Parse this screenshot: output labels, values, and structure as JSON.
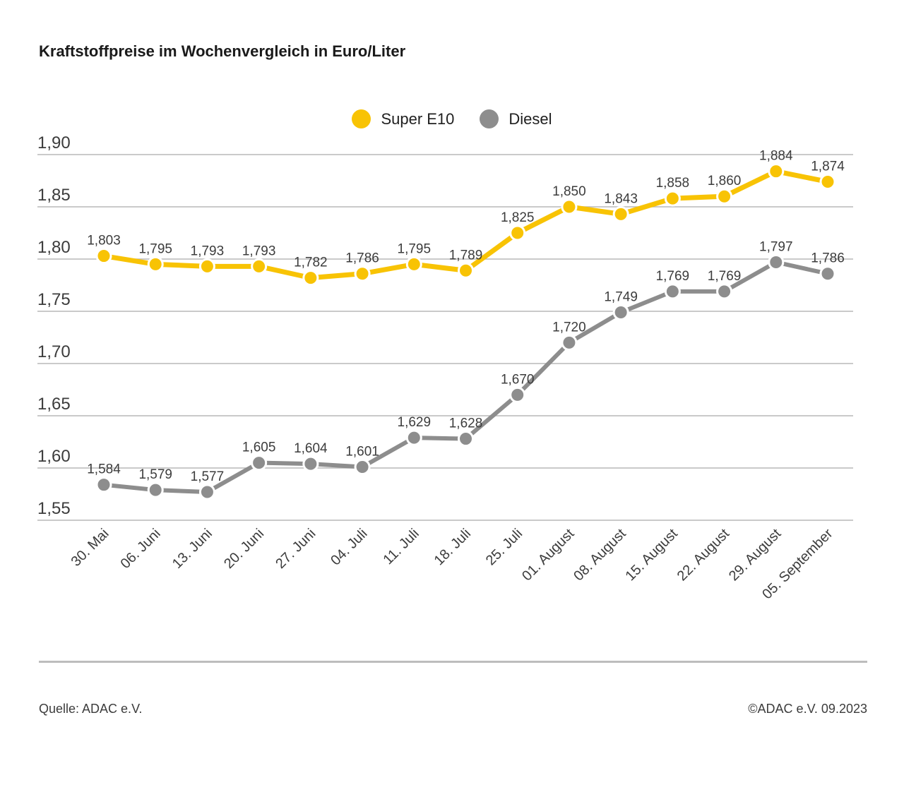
{
  "title": "Kraftstoffpreise im Wochenvergleich in Euro/Liter",
  "chart_data": {
    "type": "line",
    "title": "Kraftstoffpreise im Wochenvergleich in Euro/Liter",
    "xlabel": "",
    "ylabel": "",
    "ylim": [
      1.55,
      1.9
    ],
    "ytick_step": 0.05,
    "grid": true,
    "legend_position": "top-center",
    "decimal_separator": ",",
    "categories": [
      "30. Mai",
      "06. Juni",
      "13. Juni",
      "20. Juni",
      "27. Juni",
      "04. Juli",
      "11. Juli",
      "18. Juli",
      "25. Juli",
      "01. August",
      "08. August",
      "15. August",
      "22. August",
      "29. August",
      "05. September"
    ],
    "series": [
      {
        "name": "Super E10",
        "color": "#F8C304",
        "values": [
          1.803,
          1.795,
          1.793,
          1.793,
          1.782,
          1.786,
          1.795,
          1.789,
          1.825,
          1.85,
          1.843,
          1.858,
          1.86,
          1.884,
          1.874
        ]
      },
      {
        "name": "Diesel",
        "color": "#8D8D8D",
        "values": [
          1.584,
          1.579,
          1.577,
          1.605,
          1.604,
          1.601,
          1.629,
          1.628,
          1.67,
          1.72,
          1.749,
          1.769,
          1.769,
          1.797,
          1.786
        ]
      }
    ]
  },
  "colors": {
    "grid": "#b8b8b8",
    "axis_text": "#3c3c3c",
    "value_label": "#3c3c3c",
    "title_text": "#1a1a1a",
    "divider": "#bdbdbd"
  },
  "footer": {
    "source": "Quelle: ADAC e.V.",
    "copyright": "©ADAC e.V. 09.2023"
  }
}
